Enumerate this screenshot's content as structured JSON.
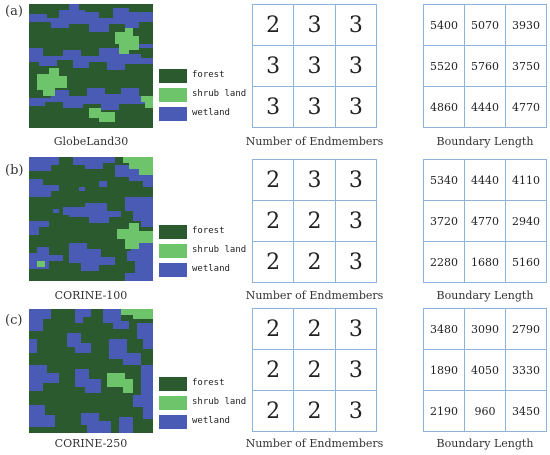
{
  "colors": {
    "forest": "#2b5a2f",
    "shrub": "#6ec46b",
    "wetland": "#4a5bb5",
    "grid_border": "#8fb3d9"
  },
  "legend": {
    "forest": "forest",
    "shrub": "shrub land",
    "wetland": "wetland"
  },
  "rows": [
    {
      "label": "(a)",
      "map_caption": "GlobeLand30",
      "endmember_caption": "Number of  Endmembers",
      "endmembers": [
        [
          "2",
          "3",
          "3"
        ],
        [
          "3",
          "3",
          "3"
        ],
        [
          "3",
          "3",
          "3"
        ]
      ],
      "boundary_caption": "Boundary Length",
      "boundary": [
        [
          "5400",
          "5070",
          "3930"
        ],
        [
          "5520",
          "5760",
          "3750"
        ],
        [
          "4860",
          "4440",
          "4770"
        ]
      ]
    },
    {
      "label": "(b)",
      "map_caption": "CORINE-100",
      "endmember_caption": "Number of  Endmembers",
      "endmembers": [
        [
          "2",
          "3",
          "3"
        ],
        [
          "2",
          "2",
          "3"
        ],
        [
          "2",
          "2",
          "3"
        ]
      ],
      "boundary_caption": "Boundary Length",
      "boundary": [
        [
          "5340",
          "4440",
          "4110"
        ],
        [
          "3720",
          "4770",
          "2940"
        ],
        [
          "2280",
          "1680",
          "5160"
        ]
      ]
    },
    {
      "label": "(c)",
      "map_caption": "CORINE-250",
      "endmember_caption": "Number of  Endmembers",
      "endmembers": [
        [
          "2",
          "2",
          "3"
        ],
        [
          "2",
          "2",
          "3"
        ],
        [
          "2",
          "2",
          "3"
        ]
      ],
      "boundary_caption": "Boundary Length",
      "boundary": [
        [
          "3480",
          "3090",
          "2790"
        ],
        [
          "1890",
          "4050",
          "3330"
        ],
        [
          "2190",
          "960",
          "3450"
        ]
      ]
    }
  ]
}
